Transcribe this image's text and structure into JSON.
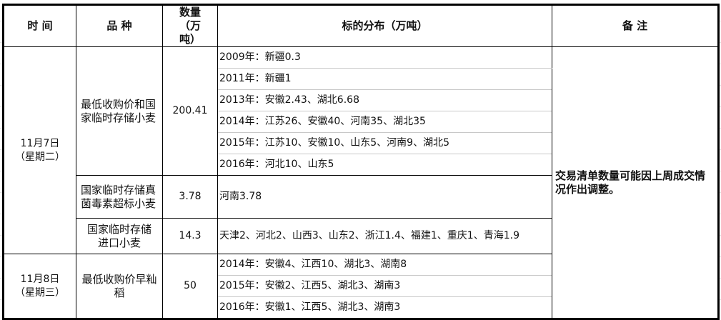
{
  "header": {
    "time": "时 间",
    "variety": "品 种",
    "quantity": "数量（万吨）",
    "distribution": "标的分布（万吨）",
    "remarks": "备 注"
  },
  "groups": [
    {
      "date": "11月7日（星期二）",
      "items": [
        {
          "variety": "最低收购价和国家临时存储小麦",
          "quantity": "200.41",
          "distribution": [
            "2009年：新疆0.3",
            "2011年：新疆1",
            "2013年：安徽2.43、湖北6.68",
            "2014年：江苏26、安徽40、河南35、湖北35",
            "2015年：江苏10、安徽10、山东5、河南9、湖北5",
            "2016年：河北10、山东5"
          ]
        },
        {
          "variety": "国家临时存储真菌毒素超标小麦",
          "quantity": "3.78",
          "distribution": [
            "河南3.78"
          ]
        },
        {
          "variety": "国家临时存储进口小麦",
          "quantity": "14.3",
          "distribution": [
            "天津2、河北2、山西3、山东2、浙江1.4、福建1、重庆1、青海1.9"
          ]
        }
      ]
    },
    {
      "date": "11月8日（星期三）",
      "items": [
        {
          "variety": "最低收购价早籼稻",
          "quantity": "50",
          "distribution": [
            "2014年：安徽4、江西10、湖北3、湖南8",
            "2015年：安徽2、江西5、湖北3、湖南3",
            "2016年：安徽1、江西5、湖北3、湖南3"
          ]
        }
      ]
    }
  ],
  "remarks": "交易清单数量可能因上周成交情况作出调整。"
}
